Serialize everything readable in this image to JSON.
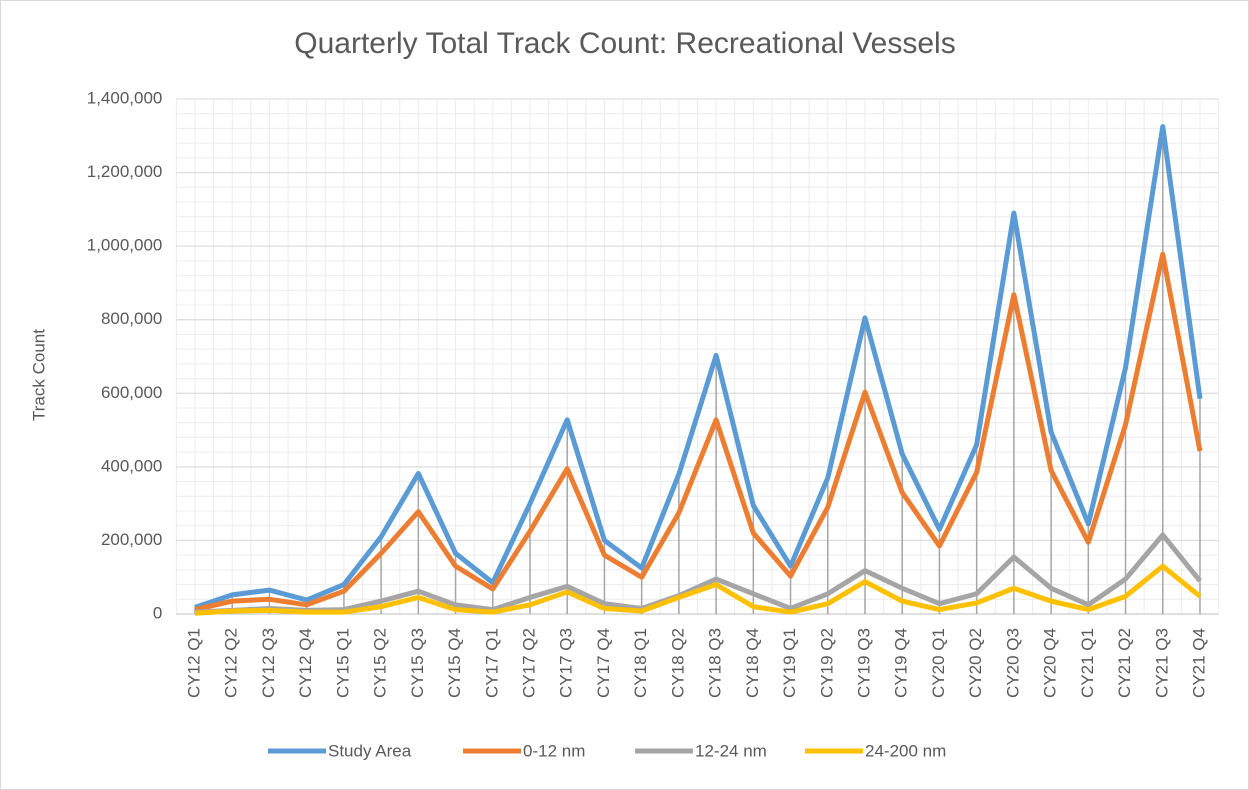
{
  "chart_data": {
    "type": "line",
    "title": "Quarterly Total Track Count: Recreational Vessels",
    "y_label": "Track Count",
    "categories": [
      "CY12 Q1",
      "CY12 Q2",
      "CY12 Q3",
      "CY12 Q4",
      "CY15 Q1",
      "CY15 Q2",
      "CY15 Q3",
      "CY15 Q4",
      "CY17 Q1",
      "CY17 Q2",
      "CY17 Q3",
      "CY17 Q4",
      "CY18 Q1",
      "CY18 Q2",
      "CY18 Q3",
      "CY18 Q4",
      "CY19 Q1",
      "CY19 Q2",
      "CY19 Q3",
      "CY19 Q4",
      "CY20 Q1",
      "CY20 Q2",
      "CY20 Q3",
      "CY20 Q4",
      "CY21 Q1",
      "CY21 Q2",
      "CY21 Q3",
      "CY21 Q4"
    ],
    "series": [
      {
        "name": "Study Area",
        "color": "#5b9bd5",
        "values": [
          18000,
          52000,
          65000,
          38000,
          80000,
          210000,
          382000,
          165000,
          85000,
          300000,
          528000,
          200000,
          125000,
          380000,
          703000,
          295000,
          130000,
          370000,
          805000,
          435000,
          230000,
          460000,
          1090000,
          495000,
          245000,
          670000,
          1325000,
          585000
        ]
      },
      {
        "name": "0-12 nm",
        "color": "#ed7d31",
        "values": [
          12000,
          35000,
          40000,
          25000,
          62000,
          165000,
          278000,
          130000,
          68000,
          225000,
          395000,
          160000,
          100000,
          275000,
          528000,
          220000,
          103000,
          290000,
          603000,
          330000,
          185000,
          385000,
          868000,
          390000,
          195000,
          515000,
          978000,
          443000
        ]
      },
      {
        "name": "12-24 nm",
        "color": "#a5a5a5",
        "values": [
          5000,
          10000,
          15000,
          10000,
          12000,
          35000,
          62000,
          25000,
          12000,
          45000,
          75000,
          28000,
          15000,
          50000,
          95000,
          55000,
          15000,
          55000,
          118000,
          70000,
          28000,
          55000,
          155000,
          70000,
          25000,
          95000,
          215000,
          90000
        ]
      },
      {
        "name": "24-200 nm",
        "color": "#ffc000",
        "values": [
          2000,
          8000,
          10000,
          5000,
          5000,
          20000,
          45000,
          12000,
          5000,
          25000,
          60000,
          15000,
          8000,
          45000,
          80000,
          20000,
          5000,
          28000,
          88000,
          35000,
          12000,
          30000,
          70000,
          35000,
          12000,
          48000,
          130000,
          48000
        ]
      }
    ],
    "ylim": [
      0,
      1400000
    ],
    "yticks": [
      0,
      {
        "value": 200000,
        "label": "200,000"
      },
      {
        "value": 400000,
        "label": "400,000"
      },
      {
        "value": 600000,
        "label": "600,000"
      },
      {
        "value": 800000,
        "label": "800,000"
      },
      {
        "value": 1000000,
        "label": "1,000,000"
      },
      {
        "value": 1200000,
        "label": "1,200,000"
      },
      {
        "value": 1400000,
        "label": "1,400,000"
      }
    ],
    "grid": true,
    "legend": "bottom"
  }
}
